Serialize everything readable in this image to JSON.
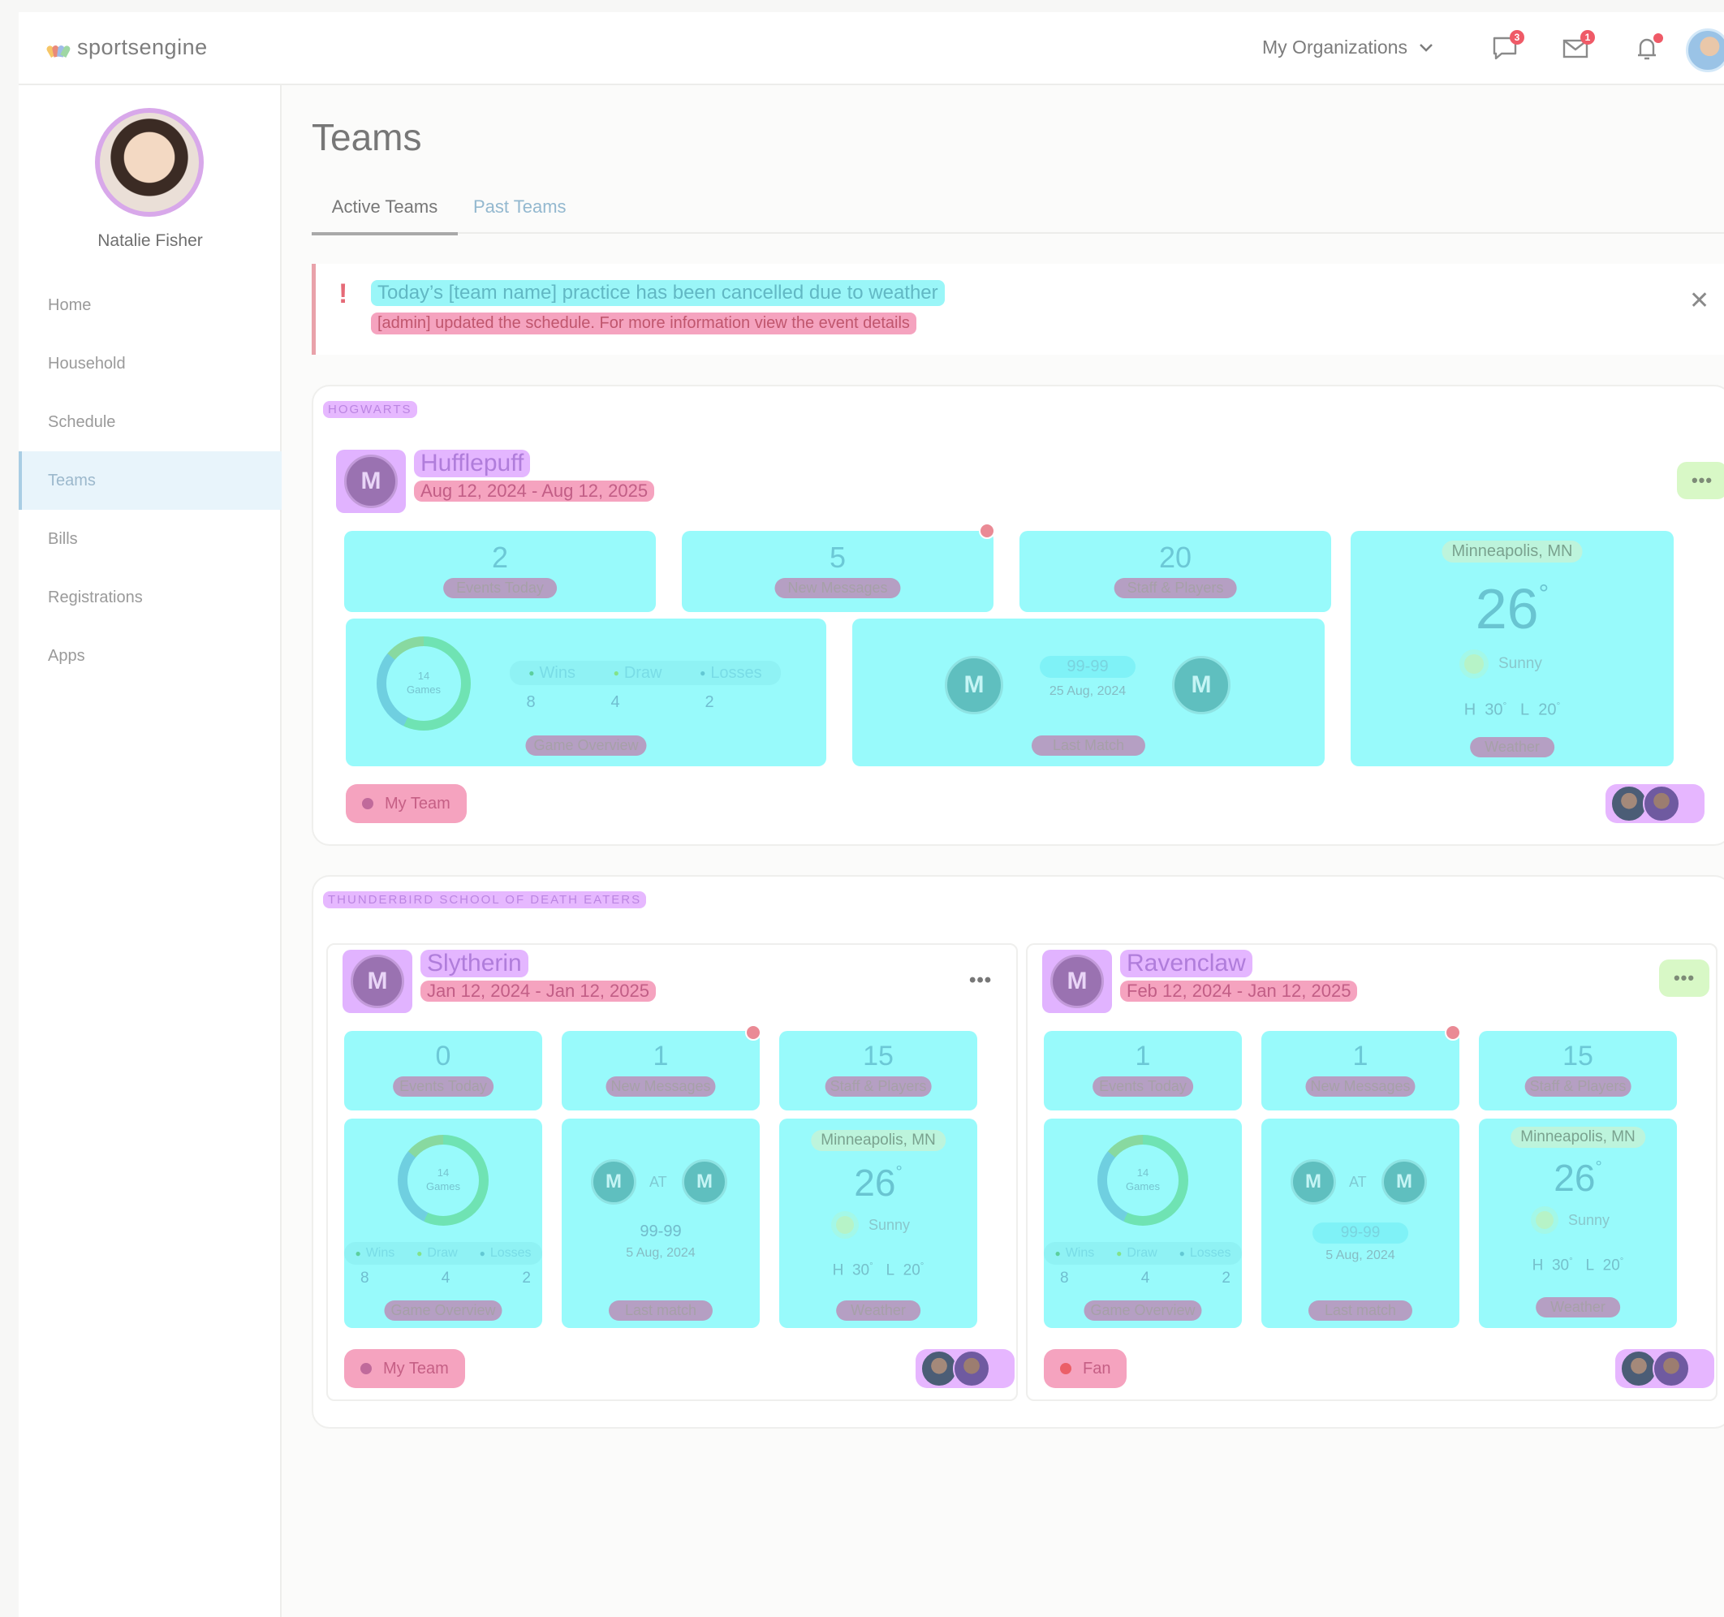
{
  "app": {
    "brand": "sportsengine"
  },
  "topbar": {
    "org_menu_label": "My Organizations",
    "chat_badge": "3",
    "mail_badge": "1"
  },
  "sidebar": {
    "user_name": "Natalie Fisher",
    "items": [
      {
        "label": "Home"
      },
      {
        "label": "Household"
      },
      {
        "label": "Schedule"
      },
      {
        "label": "Teams",
        "active": true
      },
      {
        "label": "Bills"
      },
      {
        "label": "Registrations"
      },
      {
        "label": "Apps"
      }
    ]
  },
  "page": {
    "title": "Teams",
    "tabs": [
      {
        "label": "Active Teams",
        "active": true
      },
      {
        "label": "Past Teams"
      }
    ]
  },
  "alert": {
    "title": "Today’s [team name] practice has been cancelled due to weather",
    "message": "[admin] updated the schedule. For more information view the event details"
  },
  "labels": {
    "events_today": "Events Today",
    "new_messages": "New Messages",
    "staff_players": "Staff & Players",
    "game_overview": "Game Overview",
    "last_match_title": "Last Match",
    "last_match_lower": "Last match",
    "weather": "Weather",
    "wins": "Wins",
    "draw": "Draw",
    "losses": "Losses",
    "at": "AT",
    "games": "Games",
    "sunny": "Sunny",
    "high": "H",
    "low": "L"
  },
  "sections": [
    {
      "org": "HOGWARTS",
      "teams": [
        {
          "name": "Hufflepuff",
          "dates": "Aug 12, 2024 - Aug 12, 2025",
          "events_today": "2",
          "new_messages": "5",
          "staff_players": "20",
          "games": "14",
          "wins": "8",
          "draw": "4",
          "losses": "2",
          "score": "99-99",
          "match_date": "25 Aug, 2024",
          "city": "Minneapolis, MN",
          "temp": "26",
          "high": "30",
          "low": "20",
          "role": "My Team"
        }
      ]
    },
    {
      "org": "THUNDERBIRD SCHOOL OF DEATH EATERS",
      "teams": [
        {
          "name": "Slytherin",
          "dates": "Jan 12, 2024 - Jan 12, 2025",
          "events_today": "0",
          "new_messages": "1",
          "staff_players": "15",
          "games": "14",
          "wins": "8",
          "draw": "4",
          "losses": "2",
          "score": "99-99",
          "match_date": "5 Aug, 2024",
          "city": "Minneapolis, MN",
          "temp": "26",
          "high": "30",
          "low": "20",
          "role": "My Team"
        },
        {
          "name": "Ravenclaw",
          "dates": "Feb 12, 2024 - Jan 12, 2025",
          "events_today": "1",
          "new_messages": "1",
          "staff_players": "15",
          "games": "14",
          "wins": "8",
          "draw": "4",
          "losses": "2",
          "score": "99-99",
          "match_date": "5 Aug, 2024",
          "city": "Minneapolis, MN",
          "temp": "26",
          "high": "30",
          "low": "20",
          "role": "Fan"
        }
      ]
    }
  ],
  "colors": {
    "tile_bg": "#98fafb",
    "name_highlight": "#e4b6ff",
    "date_highlight": "#f5a3bf",
    "more_button": "#d8f8c6",
    "sidebar_active": "#e8f4fb"
  }
}
